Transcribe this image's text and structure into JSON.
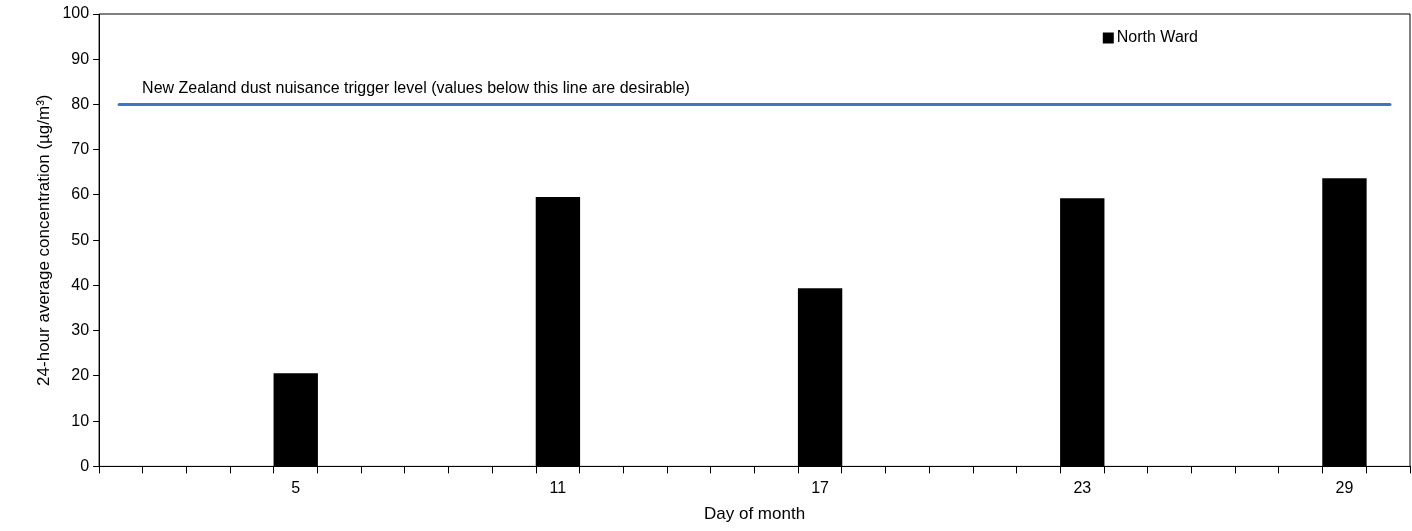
{
  "chart_data": {
    "type": "bar",
    "xlabel": "Day of month",
    "ylabel": "24-hour average concentration (µg/m³)",
    "categories": [
      null,
      null,
      null,
      null,
      "5",
      null,
      null,
      null,
      null,
      null,
      "11",
      null,
      null,
      null,
      null,
      null,
      "17",
      null,
      null,
      null,
      null,
      null,
      "23",
      null,
      null,
      null,
      null,
      null,
      "29",
      null
    ],
    "series": [
      {
        "name": "North Ward",
        "color": "#000000",
        "values": [
          null,
          null,
          null,
          null,
          20.5,
          null,
          null,
          null,
          null,
          null,
          59.5,
          null,
          null,
          null,
          null,
          null,
          39.3,
          null,
          null,
          null,
          null,
          null,
          59.2,
          null,
          null,
          null,
          null,
          null,
          63.6,
          null
        ]
      }
    ],
    "ylim": [
      0,
      100
    ],
    "yticks": [
      0,
      10,
      20,
      30,
      40,
      50,
      60,
      70,
      80,
      90,
      100
    ],
    "ref_lines": [
      {
        "axis": "y",
        "value": 80,
        "label": "New Zealand dust nuisance trigger level (values below this line are desirable)",
        "color": "#4472c4"
      }
    ],
    "grid": false,
    "legend": "top right"
  }
}
